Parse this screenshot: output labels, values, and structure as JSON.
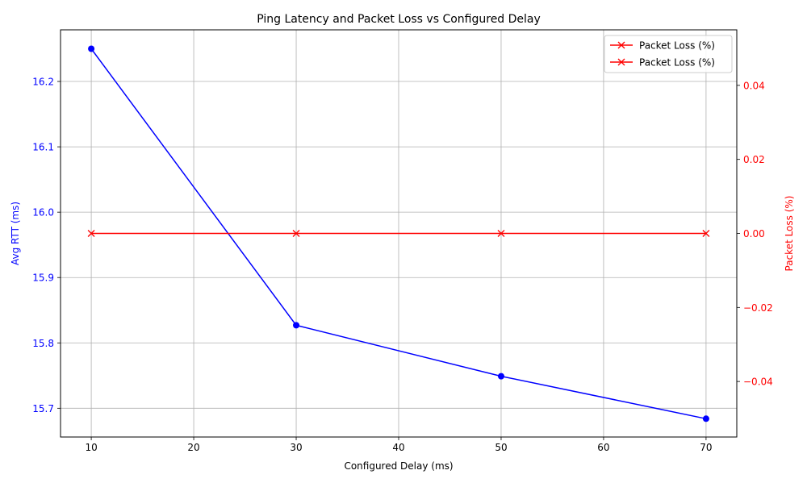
{
  "chart_data": {
    "type": "line",
    "title": "Ping Latency and Packet Loss vs Configured Delay",
    "xlabel": "Configured Delay (ms)",
    "ylabel_left": "Avg RTT (ms)",
    "ylabel_right": "Packet Loss (%)",
    "x": [
      10,
      30,
      50,
      70
    ],
    "xlim": [
      7,
      73
    ],
    "xticks": [
      10,
      20,
      30,
      40,
      50,
      60,
      70
    ],
    "ylim_left": [
      15.656,
      16.279
    ],
    "yticks_left": [
      15.7,
      15.8,
      15.9,
      16.0,
      16.1,
      16.2
    ],
    "ylim_right": [
      -0.055,
      0.055
    ],
    "yticks_right": [
      -0.04,
      -0.02,
      0.0,
      0.02,
      0.04
    ],
    "grid": true,
    "legend_position": "top-right",
    "legend_entries": [
      "Packet Loss (%)",
      "Packet Loss (%)"
    ],
    "series": [
      {
        "axis": "left",
        "values": [
          16.25,
          15.827,
          15.749,
          15.684
        ],
        "color": "#0000ff",
        "marker": "circle"
      },
      {
        "name": "Packet Loss (%)",
        "axis": "right",
        "values": [
          0,
          0,
          0,
          0
        ],
        "color": "#ff0000",
        "marker": "x"
      }
    ]
  }
}
